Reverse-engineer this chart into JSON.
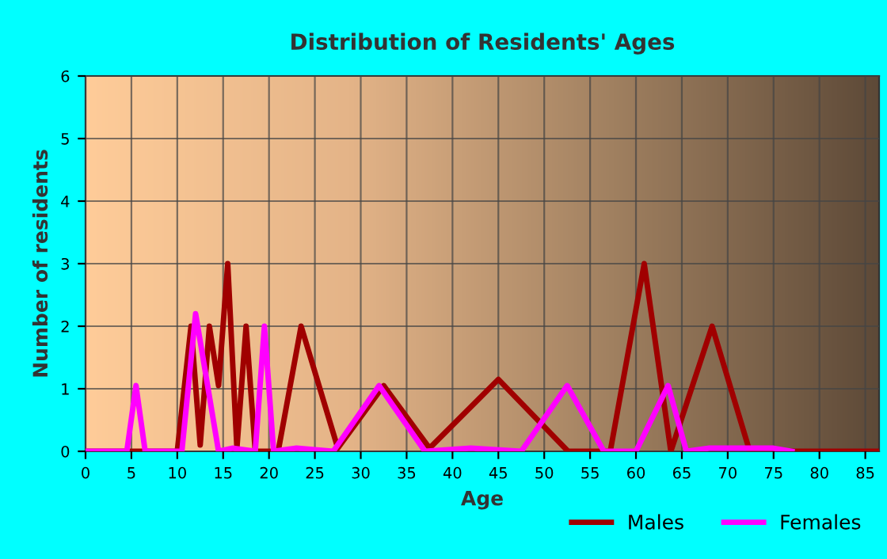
{
  "chart_data": {
    "type": "line",
    "title": "Distribution of Residents' Ages",
    "xlabel": "Age",
    "ylabel": "Number of residents",
    "xlim": [
      0,
      86.5
    ],
    "ylim": [
      0,
      6
    ],
    "xticks": [
      0,
      5,
      10,
      15,
      20,
      25,
      30,
      35,
      40,
      45,
      50,
      55,
      60,
      65,
      70,
      75,
      80,
      85
    ],
    "yticks": [
      0,
      1,
      2,
      3,
      4,
      5,
      6
    ],
    "grid": true,
    "legend": "bottom right",
    "series": [
      {
        "name": "Males",
        "color": "#a00000",
        "x": [
          0,
          10,
          11.5,
          12.5,
          13.5,
          14.5,
          15.5,
          16.5,
          17.5,
          18.5,
          21,
          23.5,
          27.5,
          32.5,
          37.5,
          45,
          52.6,
          57.2,
          60.9,
          63.8,
          68.3,
          72.4,
          86.5
        ],
        "values": [
          0,
          0,
          2,
          0.1,
          2,
          1.05,
          3,
          0.05,
          2,
          0,
          0,
          2,
          0.05,
          1.05,
          0.05,
          1.15,
          0,
          0,
          3,
          0,
          2,
          0,
          0
        ]
      },
      {
        "name": "Females",
        "color": "#ff00ff",
        "x": [
          0,
          4.5,
          5.5,
          6.5,
          10.5,
          12,
          14.5,
          16,
          18.5,
          19.5,
          20.5,
          23,
          27,
          32,
          37,
          42,
          47.5,
          52.5,
          56.5,
          60,
          63.5,
          65.5,
          68,
          75,
          77
        ],
        "values": [
          0,
          0,
          1.05,
          0,
          0,
          2.2,
          0,
          0.05,
          0,
          2,
          0,
          0.05,
          0,
          1.05,
          0,
          0.05,
          0,
          1.05,
          0,
          0,
          1.05,
          0,
          0.05,
          0.05,
          0
        ]
      }
    ]
  }
}
